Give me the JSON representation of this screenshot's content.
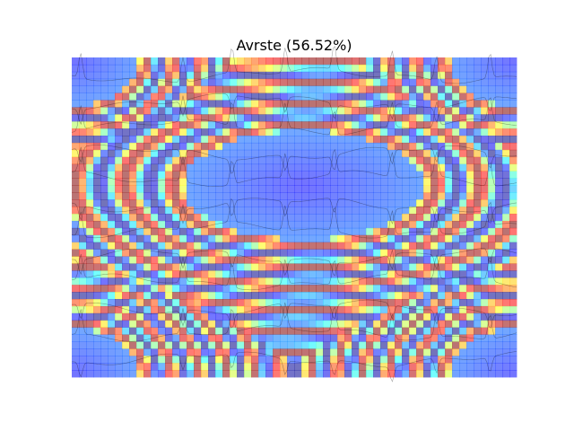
{
  "chart_data": {
    "type": "heatmap",
    "title": "Avrste (56.52%)",
    "xlabel": "",
    "ylabel": "",
    "axes_visible": false,
    "colormap": "jet",
    "field": {
      "grid_cols": 62,
      "grid_rows": 45,
      "center": [
        0.52,
        0.4
      ],
      "radius": [
        0.27,
        0.17
      ],
      "corner_minima": [
        [
          0.0,
          0.0
        ],
        [
          1.0,
          0.0
        ],
        [
          0.0,
          1.0
        ],
        [
          1.0,
          1.0
        ]
      ],
      "min_value": 0.0,
      "band_frequency": 16
    },
    "overlay": {
      "type": "line",
      "color": "#000000",
      "series_count": 12,
      "spike_positions": [
        0.02,
        0.25,
        0.36,
        0.48,
        0.59,
        0.72,
        0.82,
        0.94
      ]
    }
  }
}
